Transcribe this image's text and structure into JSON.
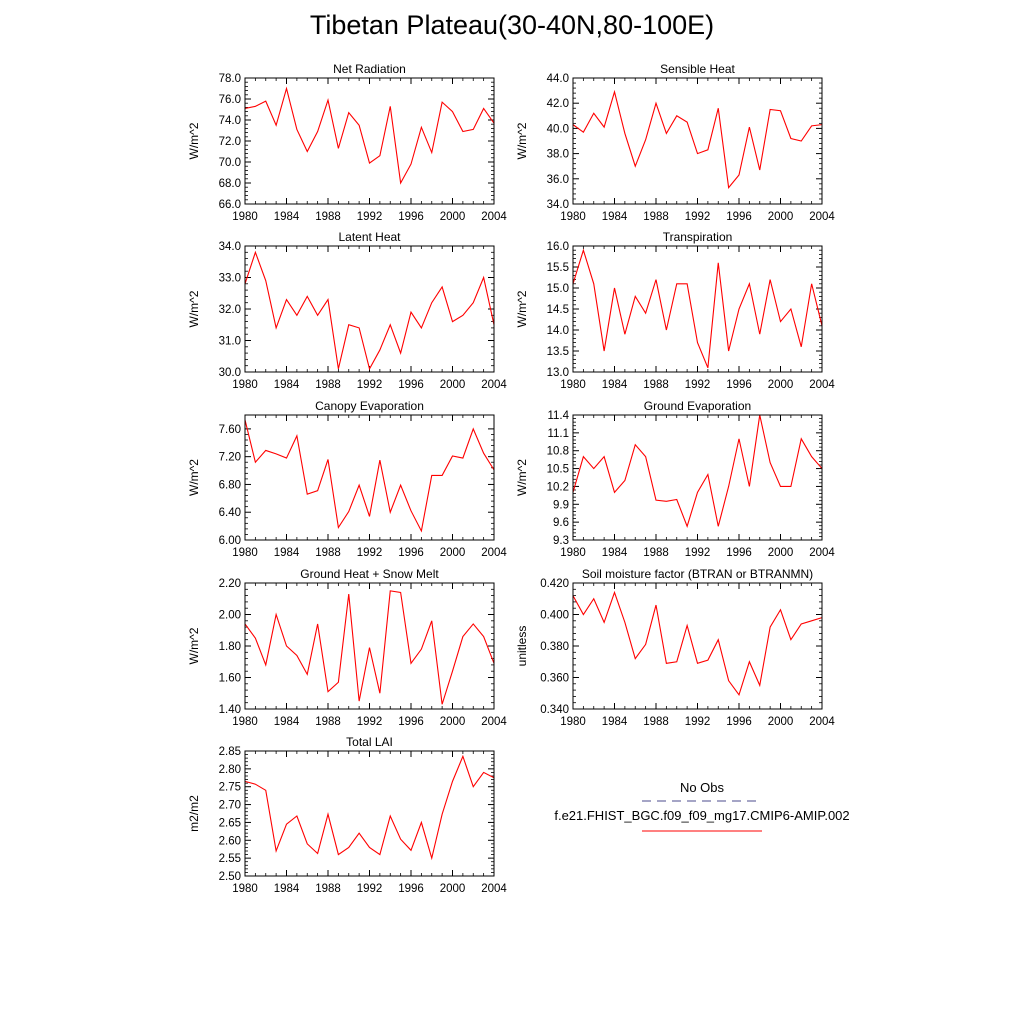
{
  "title": "Tibetan Plateau(30-40N,80-100E)",
  "legend": {
    "entries": [
      {
        "label": "No Obs",
        "color": "#4b4b8c",
        "dash": "dashed"
      },
      {
        "label": "f.e21.FHIST_BGC.f09_f09_mg17.CMIP6-AMIP.002",
        "color": "#ff0000",
        "dash": "solid"
      }
    ]
  },
  "chart_data": [
    {
      "type": "line",
      "title": "Net Radiation",
      "xlabel": "",
      "ylabel": "W/m^2",
      "xlim": [
        1980,
        2004
      ],
      "ylim": [
        66.0,
        78.0
      ],
      "xticks": [
        1980,
        1984,
        1988,
        1992,
        1996,
        2000,
        2004
      ],
      "xtick_labels": [
        "1980",
        "1984",
        "1988",
        "1992",
        "1996",
        "2000",
        "2004"
      ],
      "yticks": [
        66.0,
        68.0,
        70.0,
        72.0,
        74.0,
        76.0,
        78.0
      ],
      "ytick_labels": [
        "66.0",
        "68.0",
        "70.0",
        "72.0",
        "74.0",
        "76.0",
        "78.0"
      ],
      "grid": false,
      "series": [
        {
          "color": "#ff0000",
          "x": [
            1980,
            1981,
            1982,
            1983,
            1984,
            1985,
            1986,
            1987,
            1988,
            1989,
            1990,
            1991,
            1992,
            1993,
            1994,
            1995,
            1996,
            1997,
            1998,
            1999,
            2000,
            2001,
            2002,
            2003,
            2004
          ],
          "y": [
            75.1,
            75.3,
            75.8,
            73.5,
            77.0,
            73.1,
            71.0,
            72.9,
            75.9,
            71.3,
            74.7,
            73.5,
            69.9,
            70.6,
            75.3,
            68.0,
            69.8,
            73.3,
            70.9,
            75.7,
            74.8,
            72.9,
            73.1,
            75.1,
            73.7
          ]
        }
      ]
    },
    {
      "type": "line",
      "title": "Sensible Heat",
      "xlabel": "",
      "ylabel": "W/m^2",
      "xlim": [
        1980,
        2004
      ],
      "ylim": [
        34.0,
        44.0
      ],
      "xticks": [
        1980,
        1984,
        1988,
        1992,
        1996,
        2000,
        2004
      ],
      "xtick_labels": [
        "1980",
        "1984",
        "1988",
        "1992",
        "1996",
        "2000",
        "2004"
      ],
      "yticks": [
        34.0,
        36.0,
        38.0,
        40.0,
        42.0,
        44.0
      ],
      "ytick_labels": [
        "34.0",
        "36.0",
        "38.0",
        "40.0",
        "42.0",
        "44.0"
      ],
      "grid": false,
      "series": [
        {
          "color": "#ff0000",
          "x": [
            1980,
            1981,
            1982,
            1983,
            1984,
            1985,
            1986,
            1987,
            1988,
            1989,
            1990,
            1991,
            1992,
            1993,
            1994,
            1995,
            1996,
            1997,
            1998,
            1999,
            2000,
            2001,
            2002,
            2003,
            2004
          ],
          "y": [
            40.3,
            39.7,
            41.2,
            40.1,
            42.9,
            39.6,
            37.0,
            39.1,
            42.0,
            39.6,
            41.0,
            40.5,
            38.0,
            38.3,
            41.6,
            35.3,
            36.3,
            40.1,
            36.7,
            41.5,
            41.4,
            39.2,
            39.0,
            40.2,
            40.3
          ]
        }
      ]
    },
    {
      "type": "line",
      "title": "Latent Heat",
      "xlabel": "",
      "ylabel": "W/m^2",
      "xlim": [
        1980,
        2004
      ],
      "ylim": [
        30.0,
        34.0
      ],
      "xticks": [
        1980,
        1984,
        1988,
        1992,
        1996,
        2000,
        2004
      ],
      "xtick_labels": [
        "1980",
        "1984",
        "1988",
        "1992",
        "1996",
        "2000",
        "2004"
      ],
      "yticks": [
        30.0,
        31.0,
        32.0,
        33.0,
        34.0
      ],
      "ytick_labels": [
        "30.0",
        "31.0",
        "32.0",
        "33.0",
        "34.0"
      ],
      "grid": false,
      "series": [
        {
          "color": "#ff0000",
          "x": [
            1980,
            1981,
            1982,
            1983,
            1984,
            1985,
            1986,
            1987,
            1988,
            1989,
            1990,
            1991,
            1992,
            1993,
            1994,
            1995,
            1996,
            1997,
            1998,
            1999,
            2000,
            2001,
            2002,
            2003,
            2004
          ],
          "y": [
            32.8,
            33.8,
            32.9,
            31.4,
            32.3,
            31.8,
            32.4,
            31.8,
            32.3,
            30.1,
            31.5,
            31.4,
            30.1,
            30.7,
            31.5,
            30.6,
            31.9,
            31.4,
            32.2,
            32.7,
            31.6,
            31.8,
            32.2,
            33.0,
            31.5
          ]
        }
      ]
    },
    {
      "type": "line",
      "title": "Transpiration",
      "xlabel": "",
      "ylabel": "W/m^2",
      "xlim": [
        1980,
        2004
      ],
      "ylim": [
        13.0,
        16.0
      ],
      "xticks": [
        1980,
        1984,
        1988,
        1992,
        1996,
        2000,
        2004
      ],
      "xtick_labels": [
        "1980",
        "1984",
        "1988",
        "1992",
        "1996",
        "2000",
        "2004"
      ],
      "yticks": [
        13.0,
        13.5,
        14.0,
        14.5,
        15.0,
        15.5,
        16.0
      ],
      "ytick_labels": [
        "13.0",
        "13.5",
        "14.0",
        "14.5",
        "15.0",
        "15.5",
        "16.0"
      ],
      "grid": false,
      "series": [
        {
          "color": "#ff0000",
          "x": [
            1980,
            1981,
            1982,
            1983,
            1984,
            1985,
            1986,
            1987,
            1988,
            1989,
            1990,
            1991,
            1992,
            1993,
            1994,
            1995,
            1996,
            1997,
            1998,
            1999,
            2000,
            2001,
            2002,
            2003,
            2004
          ],
          "y": [
            15.1,
            15.9,
            15.1,
            13.5,
            15.0,
            13.9,
            14.8,
            14.4,
            15.2,
            14.0,
            15.1,
            15.1,
            13.7,
            13.1,
            15.6,
            13.5,
            14.5,
            15.1,
            13.9,
            15.2,
            14.2,
            14.5,
            13.6,
            15.1,
            14.1
          ]
        }
      ]
    },
    {
      "type": "line",
      "title": "Canopy Evaporation",
      "xlabel": "",
      "ylabel": "W/m^2",
      "xlim": [
        1980,
        2004
      ],
      "ylim": [
        6.0,
        7.8
      ],
      "xticks": [
        1980,
        1984,
        1988,
        1992,
        1996,
        2000,
        2004
      ],
      "xtick_labels": [
        "1980",
        "1984",
        "1988",
        "1992",
        "1996",
        "2000",
        "2004"
      ],
      "yticks": [
        6.0,
        6.4,
        6.8,
        7.2,
        7.6
      ],
      "ytick_labels": [
        "6.00",
        "6.40",
        "6.80",
        "7.20",
        "7.60"
      ],
      "grid": false,
      "series": [
        {
          "color": "#ff0000",
          "x": [
            1980,
            1981,
            1982,
            1983,
            1984,
            1985,
            1986,
            1987,
            1988,
            1989,
            1990,
            1991,
            1992,
            1993,
            1994,
            1995,
            1996,
            1997,
            1998,
            1999,
            2000,
            2001,
            2002,
            2003,
            2004
          ],
          "y": [
            7.73,
            7.12,
            7.29,
            7.24,
            7.18,
            7.5,
            6.66,
            6.71,
            7.16,
            6.18,
            6.41,
            6.79,
            6.34,
            7.15,
            6.4,
            6.79,
            6.42,
            6.13,
            6.93,
            6.93,
            7.21,
            7.18,
            7.6,
            7.25,
            7.01
          ]
        }
      ]
    },
    {
      "type": "line",
      "title": "Ground Evaporation",
      "xlabel": "",
      "ylabel": "W/m^2",
      "xlim": [
        1980,
        2004
      ],
      "ylim": [
        9.3,
        11.4
      ],
      "xticks": [
        1980,
        1984,
        1988,
        1992,
        1996,
        2000,
        2004
      ],
      "xtick_labels": [
        "1980",
        "1984",
        "1988",
        "1992",
        "1996",
        "2000",
        "2004"
      ],
      "yticks": [
        9.3,
        9.6,
        9.9,
        10.2,
        10.5,
        10.8,
        11.1,
        11.4
      ],
      "ytick_labels": [
        "9.3",
        "9.6",
        "9.9",
        "10.2",
        "10.5",
        "10.8",
        "11.1",
        "11.4"
      ],
      "grid": false,
      "series": [
        {
          "color": "#ff0000",
          "x": [
            1980,
            1981,
            1982,
            1983,
            1984,
            1985,
            1986,
            1987,
            1988,
            1989,
            1990,
            1991,
            1992,
            1993,
            1994,
            1995,
            1996,
            1997,
            1998,
            1999,
            2000,
            2001,
            2002,
            2003,
            2004
          ],
          "y": [
            10.1,
            10.7,
            10.5,
            10.7,
            10.1,
            10.3,
            10.9,
            10.7,
            9.97,
            9.95,
            9.98,
            9.53,
            10.1,
            10.4,
            9.53,
            10.2,
            11.0,
            10.2,
            11.4,
            10.6,
            10.2,
            10.2,
            11.0,
            10.7,
            10.5
          ]
        }
      ]
    },
    {
      "type": "line",
      "title": "Ground Heat + Snow Melt",
      "xlabel": "",
      "ylabel": "W/m^2",
      "xlim": [
        1980,
        2004
      ],
      "ylim": [
        1.4,
        2.2
      ],
      "xticks": [
        1980,
        1984,
        1988,
        1992,
        1996,
        2000,
        2004
      ],
      "xtick_labels": [
        "1980",
        "1984",
        "1988",
        "1992",
        "1996",
        "2000",
        "2004"
      ],
      "yticks": [
        1.4,
        1.6,
        1.8,
        2.0,
        2.2
      ],
      "ytick_labels": [
        "1.40",
        "1.60",
        "1.80",
        "2.00",
        "2.20"
      ],
      "grid": false,
      "series": [
        {
          "color": "#ff0000",
          "x": [
            1980,
            1981,
            1982,
            1983,
            1984,
            1985,
            1986,
            1987,
            1988,
            1989,
            1990,
            1991,
            1992,
            1993,
            1994,
            1995,
            1996,
            1997,
            1998,
            1999,
            2000,
            2001,
            2002,
            2003,
            2004
          ],
          "y": [
            1.94,
            1.85,
            1.68,
            2.0,
            1.8,
            1.74,
            1.62,
            1.94,
            1.51,
            1.57,
            2.13,
            1.45,
            1.79,
            1.5,
            2.15,
            2.14,
            1.69,
            1.78,
            1.96,
            1.43,
            1.64,
            1.86,
            1.94,
            1.86,
            1.69
          ]
        }
      ]
    },
    {
      "type": "line",
      "title": "Soil moisture factor (BTRAN or BTRANMN)",
      "xlabel": "",
      "ylabel": "unitless",
      "xlim": [
        1980,
        2004
      ],
      "ylim": [
        0.34,
        0.42
      ],
      "xticks": [
        1980,
        1984,
        1988,
        1992,
        1996,
        2000,
        2004
      ],
      "xtick_labels": [
        "1980",
        "1984",
        "1988",
        "1992",
        "1996",
        "2000",
        "2004"
      ],
      "yticks": [
        0.34,
        0.36,
        0.38,
        0.4,
        0.42
      ],
      "ytick_labels": [
        "0.340",
        "0.360",
        "0.380",
        "0.400",
        "0.420"
      ],
      "grid": false,
      "series": [
        {
          "color": "#ff0000",
          "x": [
            1980,
            1981,
            1982,
            1983,
            1984,
            1985,
            1986,
            1987,
            1988,
            1989,
            1990,
            1991,
            1992,
            1993,
            1994,
            1995,
            1996,
            1997,
            1998,
            1999,
            2000,
            2001,
            2002,
            2003,
            2004
          ],
          "y": [
            0.412,
            0.4,
            0.41,
            0.395,
            0.414,
            0.395,
            0.372,
            0.381,
            0.406,
            0.369,
            0.37,
            0.393,
            0.369,
            0.371,
            0.384,
            0.358,
            0.349,
            0.37,
            0.355,
            0.392,
            0.403,
            0.384,
            0.394,
            0.396,
            0.398
          ]
        }
      ]
    },
    {
      "type": "line",
      "title": "Total LAI",
      "xlabel": "",
      "ylabel": "m2/m2",
      "xlim": [
        1980,
        2004
      ],
      "ylim": [
        2.5,
        2.85
      ],
      "xticks": [
        1980,
        1984,
        1988,
        1992,
        1996,
        2000,
        2004
      ],
      "xtick_labels": [
        "1980",
        "1984",
        "1988",
        "1992",
        "1996",
        "2000",
        "2004"
      ],
      "yticks": [
        2.5,
        2.55,
        2.6,
        2.65,
        2.7,
        2.75,
        2.8,
        2.85
      ],
      "ytick_labels": [
        "2.50",
        "2.55",
        "2.60",
        "2.65",
        "2.70",
        "2.75",
        "2.80",
        "2.85"
      ],
      "grid": false,
      "series": [
        {
          "color": "#ff0000",
          "x": [
            1980,
            1981,
            1982,
            1983,
            1984,
            1985,
            1986,
            1987,
            1988,
            1989,
            1990,
            1991,
            1992,
            1993,
            1994,
            1995,
            1996,
            1997,
            1998,
            1999,
            2000,
            2001,
            2002,
            2003,
            2004
          ],
          "y": [
            2.765,
            2.757,
            2.74,
            2.57,
            2.645,
            2.668,
            2.59,
            2.563,
            2.673,
            2.56,
            2.58,
            2.62,
            2.58,
            2.56,
            2.668,
            2.603,
            2.572,
            2.65,
            2.55,
            2.673,
            2.765,
            2.835,
            2.75,
            2.79,
            2.775
          ]
        }
      ]
    }
  ]
}
